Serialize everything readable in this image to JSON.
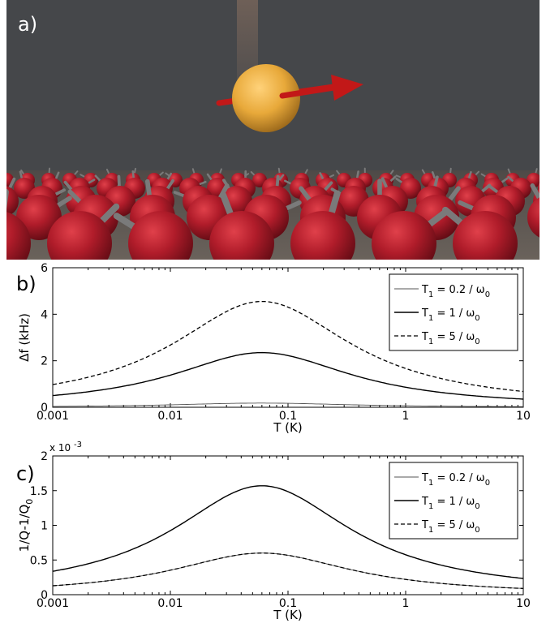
{
  "panels": {
    "a": "a)",
    "b": "b)",
    "c": "c)"
  },
  "colors": {
    "background_wall": "#45474a",
    "floor": "#5c5550",
    "spin_sphere": "#b01c2a",
    "probe_sphere": "#e8a93a",
    "arrow": "#c21818",
    "stick": "#7a7a7a"
  },
  "chart_data": [
    {
      "type": "line",
      "panel": "b)",
      "xlabel": "T (K)",
      "ylabel": "Δf (kHz)",
      "x_scale": "log",
      "xlim": [
        0.001,
        10
      ],
      "ylim": [
        0,
        6
      ],
      "x_ticks": [
        "0.001",
        "0.01",
        "0.1",
        "1",
        "10"
      ],
      "y_ticks": [
        "0",
        "2",
        "4",
        "6"
      ],
      "grid": false,
      "legend_position": "top-right",
      "legend": [
        {
          "sub": "1",
          "text": "T",
          "rest": " = 0.2 / ω",
          "rest_sub": "0"
        },
        {
          "sub": "1",
          "text": "T",
          "rest": " = 1 / ω",
          "rest_sub": "0"
        },
        {
          "sub": "1",
          "text": "T",
          "rest": " = 5 / ω",
          "rest_sub": "0"
        }
      ],
      "series": [
        {
          "name": "T1 = 0.2 / ω0",
          "style": "thin-solid",
          "peak_x": 0.06,
          "peak_y": 0.18,
          "x": [
            0.001,
            0.003,
            0.01,
            0.03,
            0.06,
            0.1,
            0.3,
            1,
            3,
            10
          ],
          "y": [
            0.01,
            0.03,
            0.07,
            0.15,
            0.18,
            0.17,
            0.1,
            0.04,
            0.015,
            0.005
          ]
        },
        {
          "name": "T1 = 1 / ω0",
          "style": "solid",
          "peak_x": 0.06,
          "peak_y": 2.35,
          "x": [
            0.001,
            0.003,
            0.01,
            0.03,
            0.06,
            0.1,
            0.3,
            1,
            3,
            10
          ],
          "y": [
            0.08,
            0.3,
            0.95,
            1.95,
            2.35,
            2.25,
            1.2,
            0.45,
            0.15,
            0.04
          ]
        },
        {
          "name": "T1 = 5 / ω0",
          "style": "dashed",
          "peak_x": 0.06,
          "peak_y": 4.55,
          "x": [
            0.001,
            0.003,
            0.01,
            0.03,
            0.06,
            0.1,
            0.3,
            1,
            3,
            10
          ],
          "y": [
            0.17,
            0.6,
            1.85,
            3.8,
            4.55,
            4.35,
            2.35,
            0.88,
            0.3,
            0.08
          ]
        }
      ]
    },
    {
      "type": "line",
      "panel": "c)",
      "xlabel": "T (K)",
      "ylabel": "1/Q-1/Q",
      "ylabel_sub": "0",
      "y_multiplier": "x 10",
      "y_multiplier_exp": "-3",
      "x_scale": "log",
      "xlim": [
        0.001,
        10
      ],
      "ylim": [
        0,
        2
      ],
      "x_ticks": [
        "0.001",
        "0.01",
        "0.1",
        "1",
        "10"
      ],
      "y_ticks": [
        "0",
        "0.5",
        "1",
        "1.5",
        "2"
      ],
      "grid": false,
      "legend_position": "top-right",
      "legend": [
        {
          "sub": "1",
          "text": "T",
          "rest": " = 0.2 / ω",
          "rest_sub": "0"
        },
        {
          "sub": "1",
          "text": "T",
          "rest": " = 1 / ω",
          "rest_sub": "0"
        },
        {
          "sub": "1",
          "text": "T",
          "rest": " = 5 / ω",
          "rest_sub": "0"
        }
      ],
      "series": [
        {
          "name": "T1 = 0.2 / ω0",
          "style": "thin-solid",
          "peak_x": 0.06,
          "peak_y": 0.6,
          "x": [
            0.001,
            0.003,
            0.01,
            0.03,
            0.06,
            0.1,
            0.3,
            1,
            3,
            10
          ],
          "y": [
            0.025,
            0.08,
            0.24,
            0.5,
            0.6,
            0.57,
            0.31,
            0.12,
            0.04,
            0.01
          ]
        },
        {
          "name": "T1 = 1 / ω0",
          "style": "solid",
          "peak_x": 0.06,
          "peak_y": 1.57,
          "x": [
            0.001,
            0.003,
            0.01,
            0.03,
            0.06,
            0.1,
            0.3,
            1,
            3,
            10
          ],
          "y": [
            0.06,
            0.2,
            0.63,
            1.3,
            1.57,
            1.5,
            0.8,
            0.3,
            0.1,
            0.025
          ]
        },
        {
          "name": "T1 = 5 / ω0",
          "style": "dashed",
          "peak_x": 0.06,
          "peak_y": 0.6,
          "x": [
            0.001,
            0.003,
            0.01,
            0.03,
            0.06,
            0.1,
            0.3,
            1,
            3,
            10
          ],
          "y": [
            0.025,
            0.08,
            0.24,
            0.5,
            0.6,
            0.57,
            0.31,
            0.12,
            0.04,
            0.01
          ]
        }
      ]
    }
  ]
}
